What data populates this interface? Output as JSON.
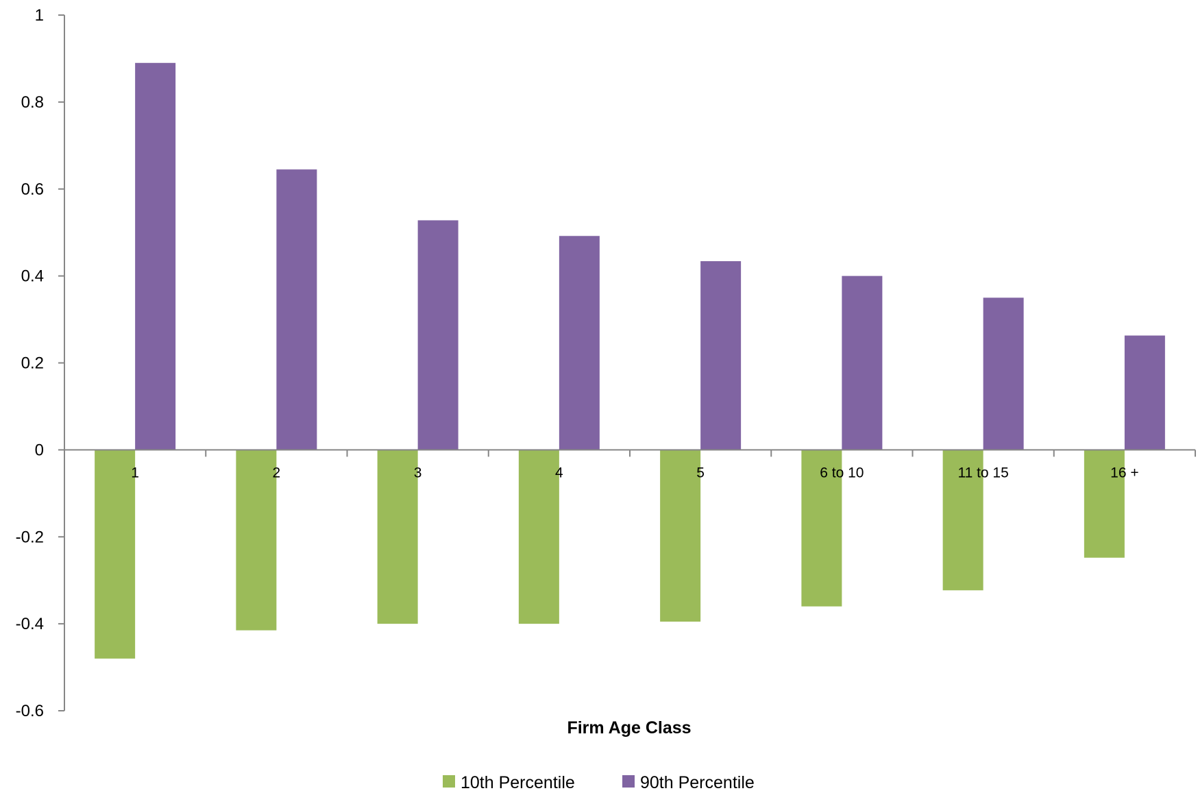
{
  "chart_data": {
    "type": "bar",
    "title": "",
    "xlabel": "Firm Age Class",
    "ylabel": "",
    "ylim": [
      -0.6,
      1
    ],
    "yticks": [
      1,
      0.8,
      0.6,
      0.4,
      0.2,
      0,
      -0.2,
      -0.4,
      -0.6
    ],
    "ytick_labels": [
      "1",
      "0.8",
      "0.6",
      "0.4",
      "0.2",
      "0",
      "-0.2",
      "-0.4",
      "-0.6"
    ],
    "categories": [
      "1",
      "2",
      "3",
      "4",
      "5",
      "6 to 10",
      "11 to 15",
      "16 +"
    ],
    "series": [
      {
        "name": "10th Percentile",
        "color": "#9BBB59",
        "values": [
          -0.48,
          -0.415,
          -0.4,
          -0.4,
          -0.395,
          -0.36,
          -0.323,
          -0.248
        ]
      },
      {
        "name": "90th Percentile",
        "color": "#8064A2",
        "values": [
          0.89,
          0.645,
          0.528,
          0.492,
          0.434,
          0.4,
          0.35,
          0.263
        ]
      }
    ],
    "grid": false,
    "legend": "bottom-center"
  }
}
